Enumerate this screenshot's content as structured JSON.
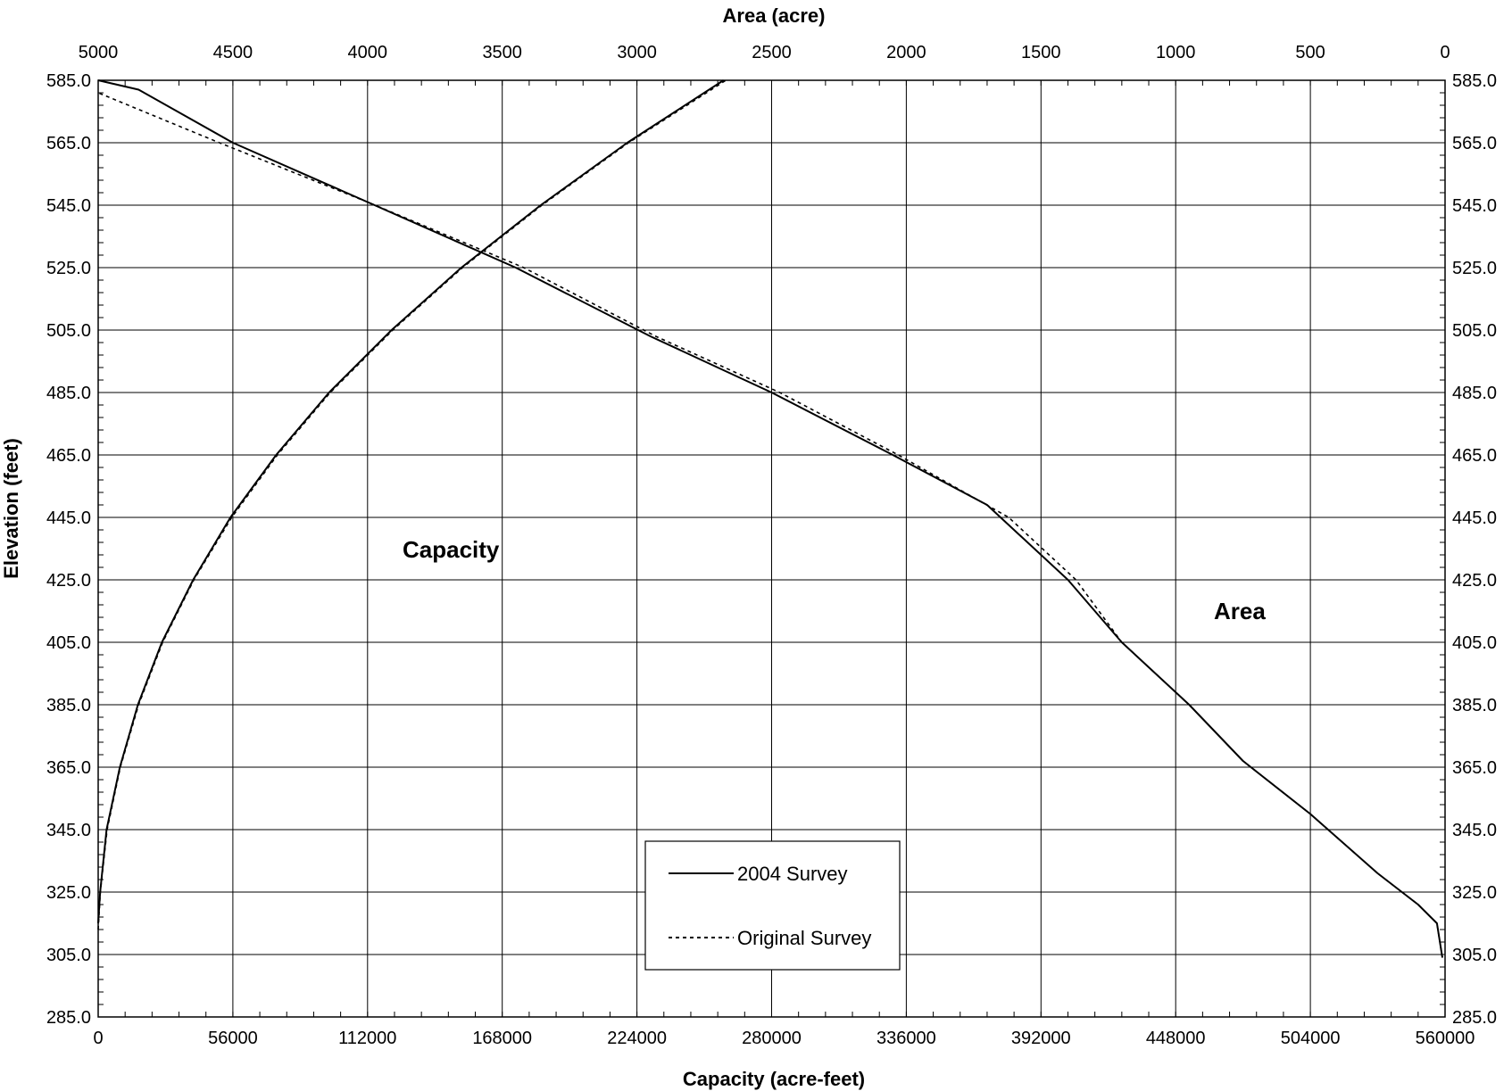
{
  "chart_data": {
    "type": "line",
    "top_axis_title": "Area (acre)",
    "bottom_axis_title": "Capacity (acre-feet)",
    "left_axis_title": "Elevation (feet)",
    "grid": true,
    "x_bottom": {
      "min": 0,
      "max": 560000,
      "ticks": [
        0,
        56000,
        112000,
        168000,
        224000,
        280000,
        336000,
        392000,
        448000,
        504000,
        560000
      ],
      "tick_labels": [
        "0",
        "56000",
        "112000",
        "168000",
        "224000",
        "280000",
        "336000",
        "392000",
        "448000",
        "504000",
        "560000"
      ]
    },
    "x_top": {
      "min": 0,
      "max": 5000,
      "reversed": true,
      "ticks": [
        5000,
        4500,
        4000,
        3500,
        3000,
        2500,
        2000,
        1500,
        1000,
        500,
        0
      ],
      "tick_labels": [
        "5000",
        "4500",
        "4000",
        "3500",
        "3000",
        "2500",
        "2000",
        "1500",
        "1000",
        "500",
        "0"
      ]
    },
    "y": {
      "min": 285.0,
      "max": 585.0,
      "ticks": [
        285.0,
        305.0,
        325.0,
        345.0,
        365.0,
        385.0,
        405.0,
        425.0,
        445.0,
        465.0,
        485.0,
        505.0,
        525.0,
        545.0,
        565.0,
        585.0
      ],
      "tick_labels": [
        "285.0",
        "305.0",
        "325.0",
        "345.0",
        "365.0",
        "385.0",
        "405.0",
        "425.0",
        "445.0",
        "465.0",
        "485.0",
        "505.0",
        "525.0",
        "545.0",
        "565.0",
        "585.0"
      ]
    },
    "annotations": {
      "capacity_label": "Capacity",
      "area_label": "Area"
    },
    "legend": {
      "placement": "bottom-center",
      "entries": [
        {
          "name": "2004 Survey",
          "style": "solid"
        },
        {
          "name": "Original Survey",
          "style": "dotted"
        }
      ]
    },
    "series": [
      {
        "name": "2004 Survey",
        "curve": "Capacity",
        "axis": "bottom",
        "style": "solid",
        "points": [
          [
            0,
            315
          ],
          [
            800,
            325
          ],
          [
            3500,
            345
          ],
          [
            9000,
            365
          ],
          [
            16500,
            385
          ],
          [
            26500,
            405
          ],
          [
            39500,
            425
          ],
          [
            55000,
            445
          ],
          [
            74000,
            465
          ],
          [
            96000,
            485
          ],
          [
            122000,
            505
          ],
          [
            151000,
            525
          ],
          [
            184000,
            545
          ],
          [
            220000,
            565
          ],
          [
            260000,
            585
          ]
        ]
      },
      {
        "name": "Original Survey",
        "curve": "Capacity",
        "axis": "bottom",
        "style": "dotted",
        "points": [
          [
            0,
            313
          ],
          [
            900,
            325
          ],
          [
            3700,
            345
          ],
          [
            9200,
            365
          ],
          [
            16800,
            385
          ],
          [
            26800,
            405
          ],
          [
            39800,
            425
          ],
          [
            55500,
            445
          ],
          [
            74500,
            465
          ],
          [
            96500,
            485
          ],
          [
            122500,
            505
          ],
          [
            151500,
            525
          ],
          [
            184500,
            545
          ],
          [
            220500,
            565
          ],
          [
            261000,
            585
          ]
        ]
      },
      {
        "name": "2004 Survey",
        "curve": "Area",
        "axis": "top",
        "style": "solid",
        "points": [
          [
            10,
            304
          ],
          [
            30,
            315
          ],
          [
            100,
            321
          ],
          [
            250,
            331
          ],
          [
            500,
            350
          ],
          [
            750,
            367
          ],
          [
            950,
            385
          ],
          [
            1200,
            405
          ],
          [
            1400,
            425
          ],
          [
            1700,
            449
          ],
          [
            2050,
            465
          ],
          [
            2500,
            485
          ],
          [
            2950,
            503
          ],
          [
            3450,
            525
          ],
          [
            4000,
            546
          ],
          [
            4500,
            565
          ],
          [
            4850,
            582
          ],
          [
            5000,
            585
          ]
        ]
      },
      {
        "name": "Original Survey",
        "curve": "Area",
        "axis": "top",
        "style": "dotted",
        "points": [
          [
            10,
            304
          ],
          [
            30,
            315
          ],
          [
            100,
            321
          ],
          [
            250,
            331
          ],
          [
            500,
            350
          ],
          [
            750,
            367
          ],
          [
            950,
            385
          ],
          [
            1200,
            405
          ],
          [
            1370,
            425
          ],
          [
            1620,
            445
          ],
          [
            2030,
            465
          ],
          [
            2470,
            485
          ],
          [
            2930,
            503
          ],
          [
            3420,
            525
          ],
          [
            4000,
            546
          ],
          [
            4550,
            565
          ],
          [
            5000,
            581
          ]
        ]
      }
    ]
  }
}
